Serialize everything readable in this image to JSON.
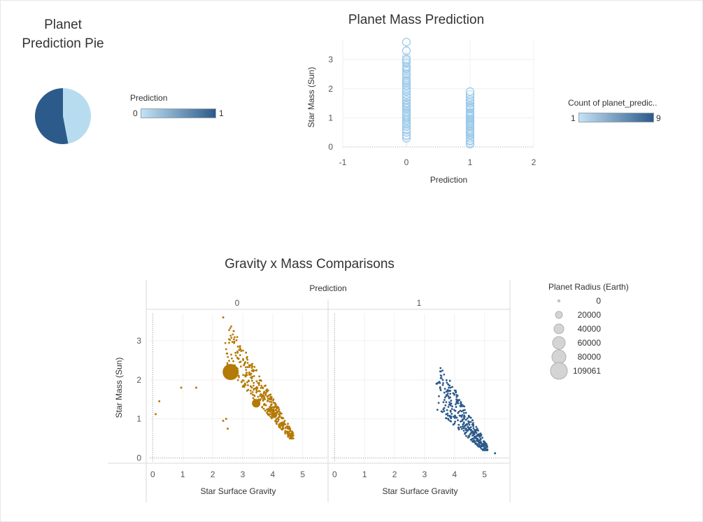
{
  "pie_title_line1": "Planet",
  "pie_title_line2": "Prediction Pie",
  "pie_legend": {
    "title": "Prediction",
    "min": "0",
    "max": "1"
  },
  "scatter_title": "Planet Mass Prediction",
  "scatter_legend": {
    "title": "Count of planet_predic..",
    "min": "1",
    "max": "9"
  },
  "facet_title": "Gravity x Mass Comparisons",
  "size_legend": {
    "title": "Planet Radius (Earth)",
    "items": [
      "0",
      "20000",
      "40000",
      "60000",
      "80000",
      "109061"
    ]
  },
  "colors": {
    "light_blue": "#b7dcf0",
    "dark_blue": "#2c5a8a",
    "gold": "#b47a07"
  },
  "chart_data": [
    {
      "type": "pie",
      "title": "Planet Prediction Pie",
      "legend_title": "Prediction",
      "slices": [
        {
          "label": "1",
          "value": 0.47,
          "color": "#b7dcf0"
        },
        {
          "label": "0",
          "value": 0.53,
          "color": "#2c5a8a"
        }
      ]
    },
    {
      "type": "scatter",
      "title": "Planet Mass Prediction",
      "xlabel": "Prediction",
      "ylabel": "Star Mass (Sun)",
      "xlim": [
        -1,
        2
      ],
      "ylim": [
        0,
        3.7
      ],
      "xticks": [
        "-1",
        "0",
        "1",
        "2"
      ],
      "yticks": [
        "0",
        "1",
        "2",
        "3"
      ],
      "legend": "Count of planet_predic.. (1–9)",
      "series": [
        {
          "name": "0",
          "x": 0,
          "y": [
            0.3,
            0.4,
            0.5,
            0.6,
            0.7,
            0.8,
            0.9,
            1.0,
            1.05,
            1.1,
            1.2,
            1.3,
            1.4,
            1.5,
            1.6,
            1.7,
            1.8,
            1.9,
            2.0,
            2.1,
            2.2,
            2.3,
            2.5,
            2.7,
            2.9,
            3.0,
            3.3,
            3.6
          ]
        },
        {
          "name": "1",
          "x": 1,
          "y": [
            0.1,
            0.2,
            0.3,
            0.4,
            0.5,
            0.6,
            0.7,
            0.8,
            0.9,
            1.0,
            1.05,
            1.1,
            1.2,
            1.3,
            1.4,
            1.5,
            1.6,
            1.7,
            1.8,
            1.9
          ]
        }
      ]
    },
    {
      "type": "scatter",
      "title": "Gravity x Mass Comparisons",
      "facet_label": "Prediction",
      "facets": [
        "0",
        "1"
      ],
      "xlabel": "Star Surface Gravity",
      "ylabel": "Star Mass (Sun)",
      "xlim": [
        -0.1,
        5.8
      ],
      "ylim": [
        -0.1,
        3.7
      ],
      "xticks": [
        "0",
        "1",
        "2",
        "3",
        "4",
        "5"
      ],
      "yticks": [
        "0",
        "1",
        "2",
        "3"
      ],
      "size_by": "Planet Radius (Earth)",
      "panels": [
        {
          "facet": "0",
          "color": "#b47a07",
          "large_points": [
            {
              "x": 2.6,
              "y": 2.2,
              "radius_earth": 109061
            },
            {
              "x": 3.45,
              "y": 1.4,
              "radius_earth": 30000
            },
            {
              "x": 4.05,
              "y": 1.1,
              "radius_earth": 15000
            }
          ],
          "outliers": [
            {
              "x": 0.1,
              "y": 1.12
            },
            {
              "x": 0.22,
              "y": 1.45
            },
            {
              "x": 0.95,
              "y": 1.8
            },
            {
              "x": 1.45,
              "y": 1.8
            },
            {
              "x": 2.35,
              "y": 3.6
            },
            {
              "x": 2.45,
              "y": 1.0
            },
            {
              "x": 2.5,
              "y": 0.75
            },
            {
              "x": 2.7,
              "y": 3.25
            },
            {
              "x": 2.35,
              "y": 0.95
            }
          ],
          "cluster": {
            "x_range": [
              2.4,
              4.7
            ],
            "y_range": [
              0.5,
              3.0
            ],
            "count": 420,
            "trend": "descending"
          }
        },
        {
          "facet": "1",
          "color": "#2c5a8a",
          "large_points": [],
          "outliers": [
            {
              "x": 5.35,
              "y": 0.12
            },
            {
              "x": 3.4,
              "y": 1.9
            }
          ],
          "cluster": {
            "x_range": [
              3.4,
              5.1
            ],
            "y_range": [
              0.2,
              1.9
            ],
            "count": 360,
            "trend": "descending"
          }
        }
      ]
    }
  ]
}
